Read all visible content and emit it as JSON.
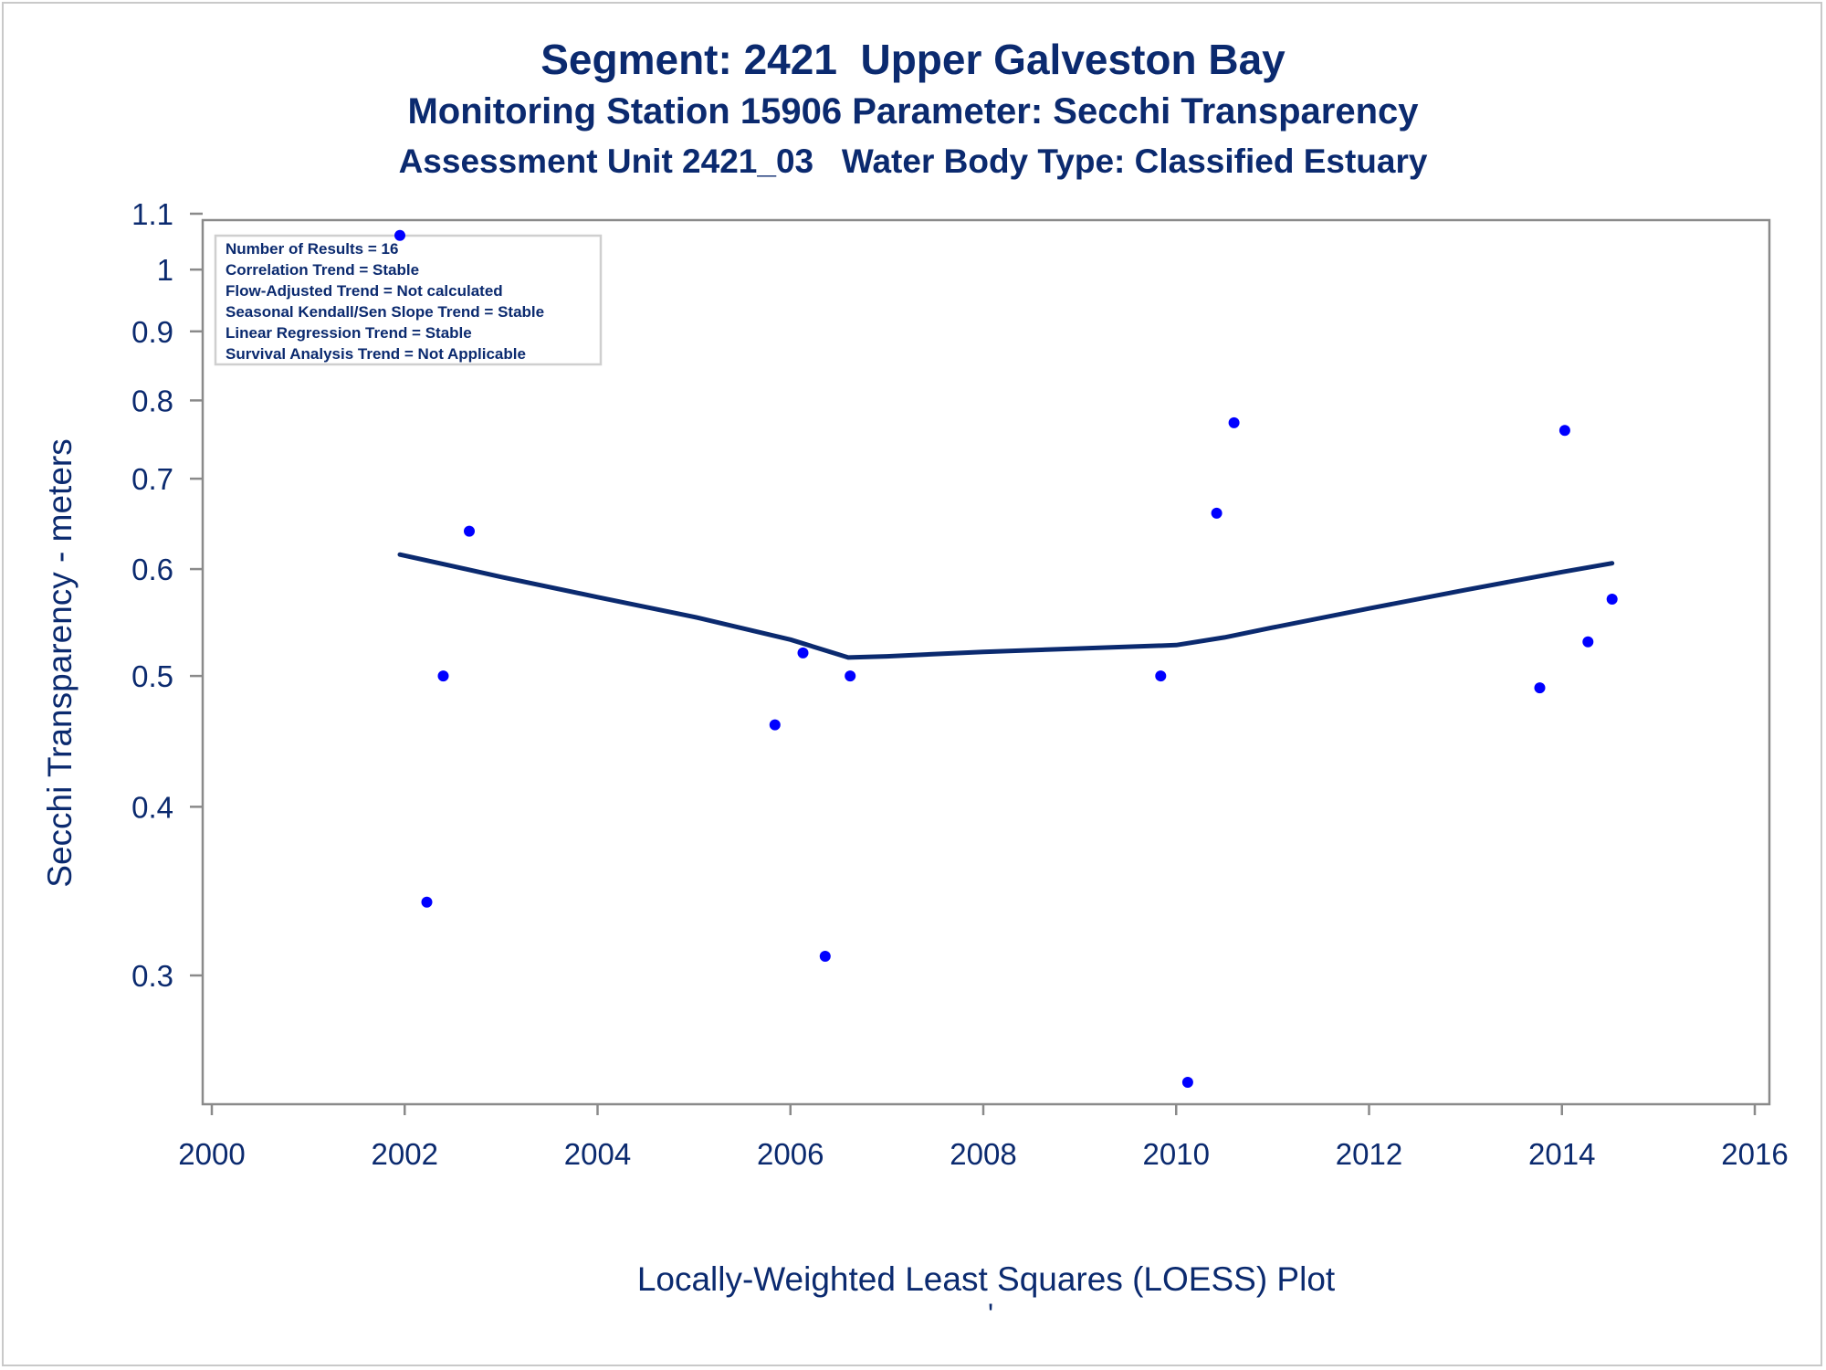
{
  "chart_data": {
    "type": "scatter",
    "title": "Segment: 2421  Upper Galveston Bay",
    "subtitle_lines": [
      "Monitoring Station 15906 Parameter: Secchi Transparency",
      "Assessment Unit 2421_03   Water Body Type: Classified Estuary"
    ],
    "xlabel": "Locally-Weighted Least Squares (LOESS) Plot",
    "ylabel": "Secchi Transparency - meters",
    "footnote_mark": "'",
    "y_scale": "log",
    "xlim": [
      2000,
      2016
    ],
    "ylim": [
      0.245,
      1.1
    ],
    "x_ticks": [
      2000,
      2002,
      2004,
      2006,
      2008,
      2010,
      2012,
      2014,
      2016
    ],
    "y_ticks": [
      0.3,
      0.4,
      0.5,
      0.6,
      0.7,
      0.8,
      0.9,
      1,
      1.1
    ],
    "x_tick_labels": [
      "2000",
      "2002",
      "2004",
      "2006",
      "2008",
      "2010",
      "2012",
      "2014",
      "2016"
    ],
    "y_tick_labels": [
      "0.3",
      "0.4",
      "0.5",
      "0.6",
      "0.7",
      "0.8",
      "0.9",
      "1",
      "1.1"
    ],
    "grid": false,
    "points": [
      {
        "x": 2001.95,
        "y": 1.06
      },
      {
        "x": 2002.23,
        "y": 0.34
      },
      {
        "x": 2002.4,
        "y": 0.5
      },
      {
        "x": 2002.67,
        "y": 0.64
      },
      {
        "x": 2005.84,
        "y": 0.46
      },
      {
        "x": 2006.13,
        "y": 0.52
      },
      {
        "x": 2006.36,
        "y": 0.31
      },
      {
        "x": 2006.62,
        "y": 0.5
      },
      {
        "x": 2009.84,
        "y": 0.5
      },
      {
        "x": 2010.12,
        "y": 0.25
      },
      {
        "x": 2010.42,
        "y": 0.66
      },
      {
        "x": 2010.6,
        "y": 0.77
      },
      {
        "x": 2013.77,
        "y": 0.49
      },
      {
        "x": 2014.03,
        "y": 0.76
      },
      {
        "x": 2014.27,
        "y": 0.53
      },
      {
        "x": 2014.52,
        "y": 0.57
      }
    ],
    "loess_line": {
      "x": [
        2001.95,
        2002.5,
        2003.0,
        2004.0,
        2005.0,
        2006.0,
        2006.6,
        2007.0,
        2008.0,
        2009.0,
        2010.0,
        2010.5,
        2011.0,
        2012.0,
        2013.0,
        2014.0,
        2014.52
      ],
      "y": [
        0.615,
        0.603,
        0.592,
        0.572,
        0.553,
        0.532,
        0.516,
        0.517,
        0.521,
        0.524,
        0.527,
        0.534,
        0.543,
        0.561,
        0.579,
        0.597,
        0.606
      ]
    },
    "stats_box": [
      "Number of Results = 16",
      "Correlation Trend = Stable",
      "Flow-Adjusted Trend = Not calculated",
      "Seasonal Kendall/Sen Slope Trend = Stable",
      "Linear Regression Trend = Stable",
      "Survival Analysis Trend = Not Applicable"
    ],
    "colors": {
      "text": "#0b2a6f",
      "points": "#0000ff",
      "line": "#0b2a6f",
      "axes": "#8a8a8a"
    }
  }
}
